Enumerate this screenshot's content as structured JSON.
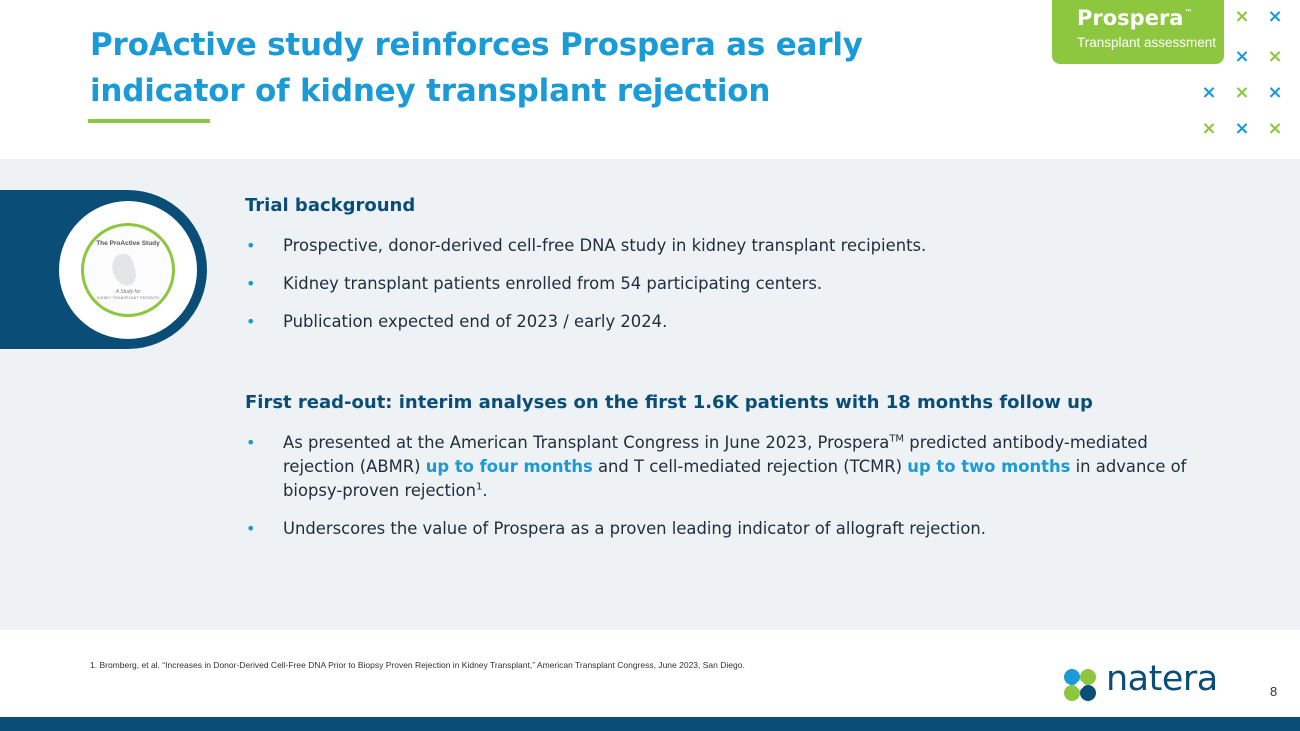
{
  "header": {
    "title": "ProActive study reinforces Prospera as early indicator of kidney transplant rejection"
  },
  "badge": {
    "brand": "Prospera",
    "trademark": "™",
    "subtitle": "Transplant assessment",
    "color": "#8dc63f"
  },
  "decor": {
    "x_marks": [
      {
        "color": "#8dc63f"
      },
      {
        "color": "#1a9ad6"
      },
      {
        "color": "#1a9ad6"
      },
      {
        "color": "#8dc63f"
      },
      {
        "color": "#1a9ad6"
      },
      {
        "color": "#8dc63f"
      },
      {
        "color": "#1a9ad6"
      },
      {
        "color": "#8dc63f"
      },
      {
        "color": "#1a9ad6"
      },
      {
        "color": "#8dc63f"
      }
    ],
    "glyph": "×"
  },
  "study_logo": {
    "title": "The ProActive Study",
    "tagline": "A Study for",
    "audience": "KIDNEY TRANSPLANT PATIENTS"
  },
  "trial_background": {
    "heading": "Trial background",
    "bullets": [
      "Prospective, donor-derived cell-free DNA study in kidney transplant recipients.",
      "Kidney transplant patients enrolled from 54 participating centers.",
      "Publication expected end of 2023 / early 2024."
    ]
  },
  "first_readout": {
    "heading": "First read-out: interim analyses on the first 1.6K patients with 18 months follow up",
    "bullet1": {
      "part1": "As presented at the American Transplant Congress in June 2023, Prospera",
      "tm": "TM",
      "part2": " predicted antibody-mediated rejection (ABMR) ",
      "highlight1": "up to four months",
      "part3": " and T cell-mediated rejection (TCMR) ",
      "highlight2": "up to two months",
      "part4": " in advance of biopsy-proven rejection",
      "ref": "1",
      "end": "."
    },
    "bullet2": "Underscores the value of Prospera as a proven leading indicator of allograft rejection."
  },
  "footer": {
    "footnote": "1. Bromberg, et al. “Increases in Donor-Derived Cell-Free DNA Prior to Biopsy Proven Rejection in Kidney Transplant,” American Transplant Congress, June 2023, San Diego.",
    "logo_text": "natera",
    "page_number": "8"
  },
  "colors": {
    "accent_blue": "#1a9ad6",
    "navy": "#0a4e78",
    "green": "#8dc63f"
  }
}
